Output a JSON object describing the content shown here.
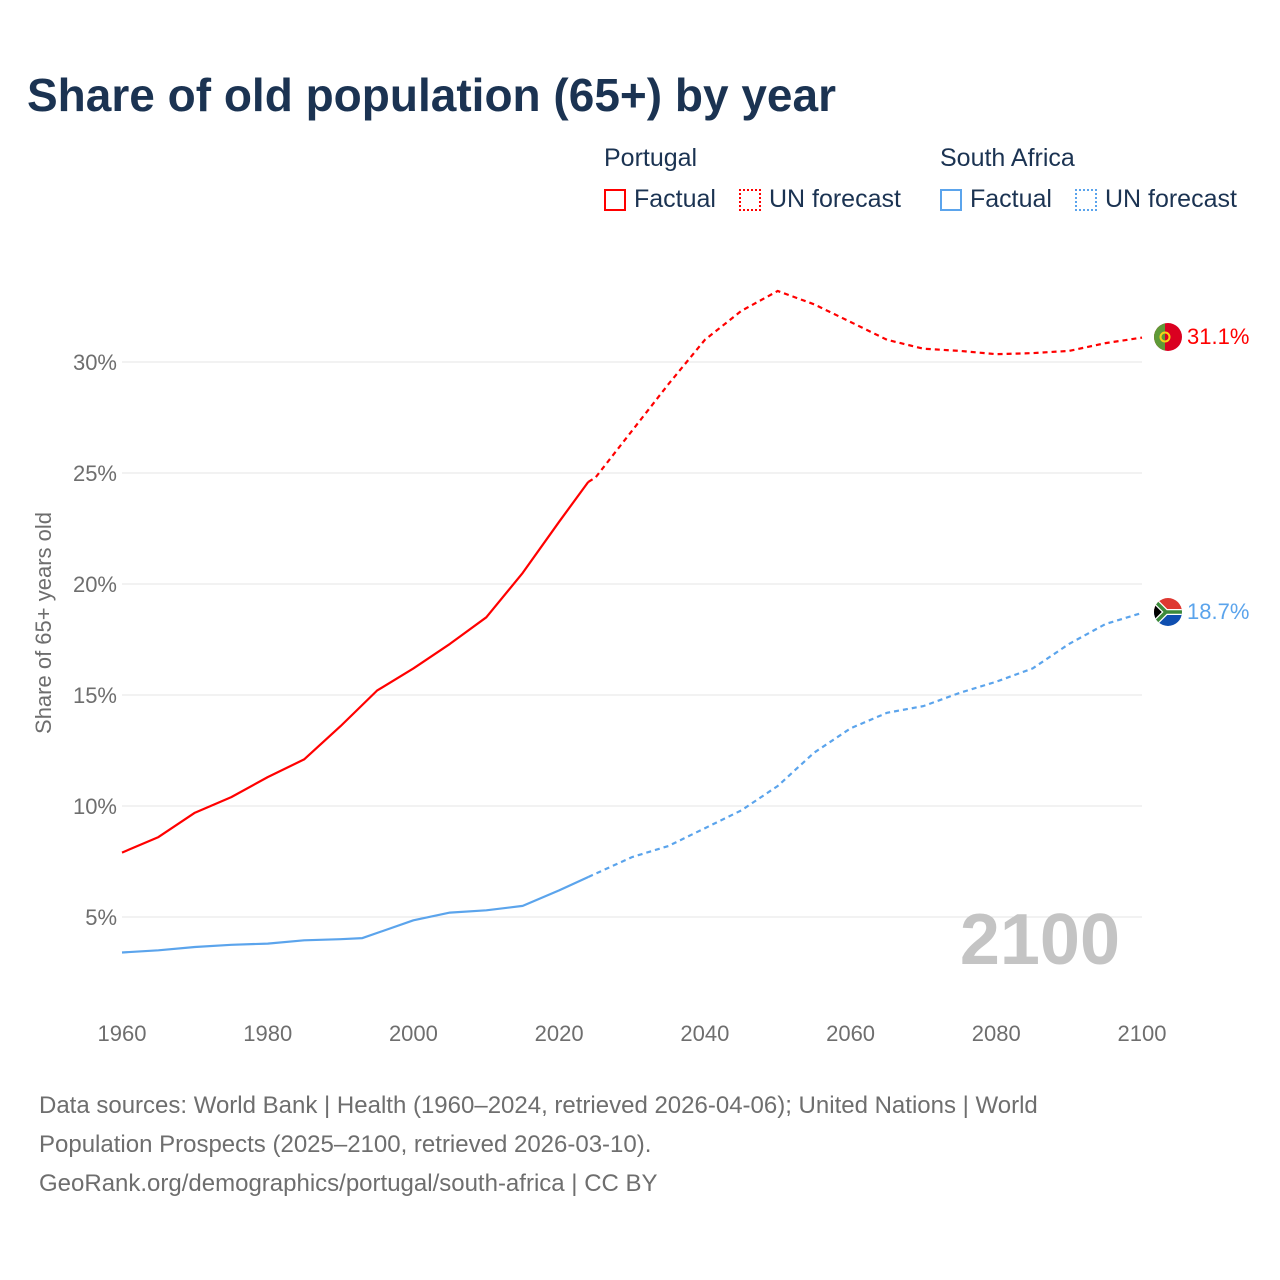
{
  "title": "Share of old population (65+) by year",
  "legend": {
    "groups": [
      {
        "name": "Portugal",
        "factual": "Factual",
        "forecast": "UN forecast",
        "color": "#ff0000"
      },
      {
        "name": "South Africa",
        "factual": "Factual",
        "forecast": "UN forecast",
        "color": "#5ba4ec"
      }
    ]
  },
  "year_watermark": "2100",
  "footer": {
    "line1": "Data sources: World Bank | Health (1960–2024, retrieved 2026-04-06); United Nations | World",
    "line2": "Population Prospects (2025–2100, retrieved 2026-03-10).",
    "line3": "GeoRank.org/demographics/portugal/south-africa | CC BY"
  },
  "chart_data": {
    "type": "line",
    "title": "Share of old population (65+) by year",
    "xlabel": "",
    "ylabel": "Share of 65+ years old",
    "xlim": [
      1960,
      2100
    ],
    "ylim": [
      0,
      33.5
    ],
    "x_ticks": [
      "1960",
      "1980",
      "2000",
      "2020",
      "2040",
      "2060",
      "2080",
      "2100"
    ],
    "x_tick_values": [
      1960,
      1980,
      2000,
      2020,
      2040,
      2060,
      2080,
      2100
    ],
    "y_ticks": [
      "5%",
      "10%",
      "15%",
      "20%",
      "25%",
      "30%"
    ],
    "y_tick_values": [
      5,
      10,
      15,
      20,
      25,
      30
    ],
    "grid": true,
    "legend_position": "top-right",
    "series": [
      {
        "name": "Portugal",
        "color": "#ff0000",
        "end_label": "31.1%",
        "factual": {
          "x": [
            1960,
            1965,
            1970,
            1975,
            1980,
            1985,
            1990,
            1995,
            2000,
            2005,
            2010,
            2015,
            2020,
            2024
          ],
          "y": [
            7.9,
            8.6,
            9.7,
            10.4,
            11.3,
            12.1,
            13.6,
            15.2,
            16.2,
            17.3,
            18.5,
            20.5,
            22.8,
            24.6
          ]
        },
        "forecast": {
          "x": [
            2024,
            2025,
            2030,
            2035,
            2040,
            2045,
            2050,
            2055,
            2060,
            2065,
            2070,
            2075,
            2080,
            2085,
            2090,
            2095,
            2100
          ],
          "y": [
            24.6,
            24.8,
            26.9,
            29.0,
            31.0,
            32.3,
            33.2,
            32.6,
            31.8,
            31.0,
            30.6,
            30.5,
            30.35,
            30.4,
            30.5,
            30.85,
            31.1
          ]
        }
      },
      {
        "name": "South Africa",
        "color": "#5ba4ec",
        "end_label": "18.7%",
        "factual": {
          "x": [
            1960,
            1965,
            1970,
            1975,
            1980,
            1985,
            1990,
            1993,
            2000,
            2005,
            2010,
            2015,
            2020,
            2024
          ],
          "y": [
            3.4,
            3.5,
            3.65,
            3.75,
            3.8,
            3.95,
            4.0,
            4.05,
            4.85,
            5.2,
            5.3,
            5.5,
            6.2,
            6.8
          ]
        },
        "forecast": {
          "x": [
            2024,
            2030,
            2035,
            2040,
            2045,
            2050,
            2055,
            2060,
            2065,
            2070,
            2075,
            2080,
            2085,
            2090,
            2095,
            2100
          ],
          "y": [
            6.8,
            7.7,
            8.2,
            9.0,
            9.8,
            10.9,
            12.4,
            13.5,
            14.2,
            14.5,
            15.1,
            15.6,
            16.2,
            17.3,
            18.2,
            18.7
          ]
        }
      }
    ]
  }
}
